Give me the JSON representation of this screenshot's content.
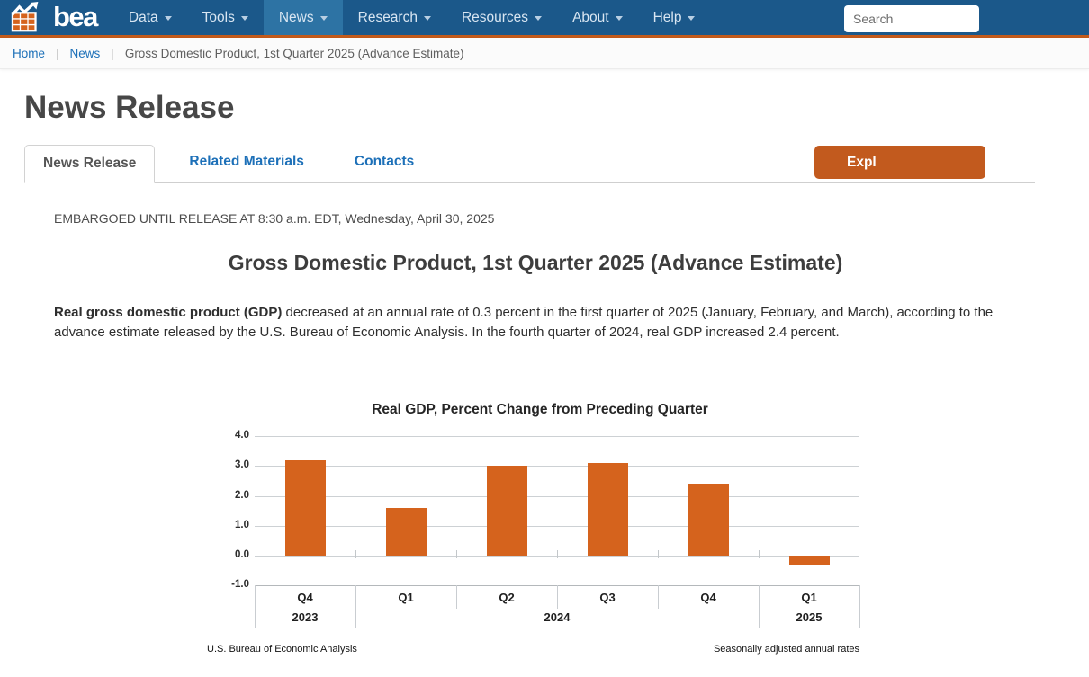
{
  "nav": {
    "logo_text": "bea",
    "items": [
      "Data",
      "Tools",
      "News",
      "Research",
      "Resources",
      "About",
      "Help"
    ],
    "active_item": "News",
    "search_placeholder": "Search"
  },
  "breadcrumb": {
    "separator": "|",
    "items": [
      {
        "label": "Home"
      },
      {
        "label": "News"
      },
      {
        "label": "Gross Domestic Product, 1st Quarter 2025 (Advance Estimate)"
      }
    ]
  },
  "page": {
    "title": "News Release"
  },
  "tabs": {
    "news_release": "News Release",
    "related_materials": "Related Materials",
    "contacts": "Contacts"
  },
  "explore_button_label": "Expl",
  "article": {
    "embargo": "EMBARGOED UNTIL RELEASE AT 8:30 a.m. EDT, Wednesday, April 30, 2025",
    "title": "Gross Domestic Product, 1st Quarter 2025 (Advance Estimate)",
    "paragraph_lead": "Real gross domestic product (GDP)",
    "paragraph_line1_rest": " decreased at an annual rate of 0.3 percent in the first quarter of 2025 (January, February, and March), according to the",
    "paragraph_line2": "advance estimate released by the U.S. Bureau of Economic Analysis. In the fourth quarter of 2024, real GDP increased 2.4 percent."
  },
  "chart_data": {
    "type": "bar",
    "title": "Real GDP, Percent Change from Preceding Quarter",
    "categories": [
      "Q4",
      "Q1",
      "Q2",
      "Q3",
      "Q4",
      "Q1"
    ],
    "year_groups": [
      {
        "label": "2023",
        "span": 1
      },
      {
        "label": "2024",
        "span": 4
      },
      {
        "label": "2025",
        "span": 1
      }
    ],
    "values": [
      3.2,
      1.6,
      3.0,
      3.1,
      2.4,
      -0.3
    ],
    "ylim": [
      -1.0,
      4.0
    ],
    "yticks": [
      4.0,
      3.0,
      2.0,
      1.0,
      0.0,
      -1.0
    ],
    "grid": true,
    "bar_color": "#d5631d",
    "footnote_left": "U.S. Bureau of Economic Analysis",
    "footnote_right": "Seasonally adjusted annual rates"
  },
  "colors": {
    "nav_blue": "#1b588a",
    "nav_active_blue": "#2d73a4",
    "accent_orange": "#c35a1a",
    "bar_orange": "#d5631d",
    "link_blue": "#1d70b8"
  }
}
